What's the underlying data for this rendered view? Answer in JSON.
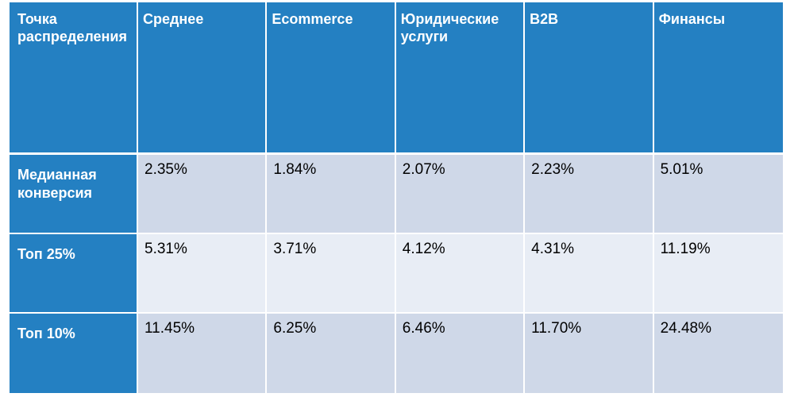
{
  "table": {
    "header": {
      "corner": "Точка распределения",
      "columns": [
        "Среднее",
        "Ecommerce",
        "Юридические услуги",
        "B2B",
        "Финансы"
      ]
    },
    "rows": [
      {
        "label": "Медианная конверсия",
        "values": [
          "2.35%",
          "1.84%",
          "2.07%",
          "2.23%",
          "5.01%"
        ]
      },
      {
        "label": "Топ 25%",
        "values": [
          "5.31%",
          "3.71%",
          "4.12%",
          "4.31%",
          "11.19%"
        ]
      },
      {
        "label": "Топ 10%",
        "values": [
          "11.45%",
          "6.25%",
          "6.46%",
          "11.70%",
          "24.48%"
        ]
      }
    ]
  },
  "colors": {
    "header_blue": "#2480c2",
    "row_dark": "#cfd8e8",
    "row_light": "#e8edf5"
  }
}
